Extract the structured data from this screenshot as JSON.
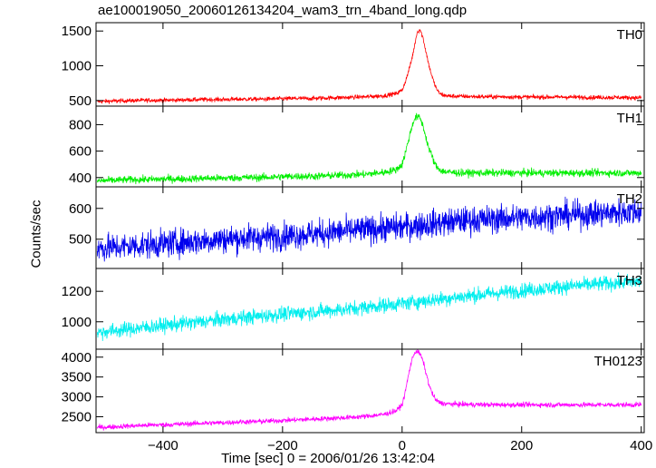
{
  "chart_data": {
    "type": "line",
    "title": "ae100019050_20060126134204_wam3_trn_4band_long.qdp",
    "xlabel": "Time [sec] 0 = 2006/01/26 13:42:04",
    "ylabel": "Counts/sec",
    "xlim": [
      -512,
      405
    ],
    "x_ticks": [
      -400,
      -200,
      0,
      200,
      400
    ],
    "grid": false,
    "panels": [
      {
        "name": "TH0",
        "color": "#ff0000",
        "ylim": [
          420,
          1620
        ],
        "y_ticks": [
          500,
          1000,
          1500
        ],
        "x": [
          -510,
          -480,
          -450,
          -420,
          -390,
          -360,
          -330,
          -300,
          -270,
          -240,
          -210,
          -180,
          -150,
          -120,
          -90,
          -60,
          -30,
          -10,
          0,
          5,
          10,
          15,
          20,
          25,
          30,
          35,
          40,
          45,
          50,
          55,
          60,
          65,
          70,
          80,
          100,
          130,
          160,
          200,
          240,
          280,
          320,
          360,
          400
        ],
        "y": [
          485,
          495,
          500,
          505,
          505,
          510,
          515,
          515,
          520,
          520,
          525,
          530,
          530,
          540,
          545,
          555,
          570,
          600,
          650,
          760,
          900,
          1050,
          1250,
          1480,
          1520,
          1400,
          1200,
          1000,
          850,
          720,
          630,
          590,
          575,
          565,
          560,
          555,
          555,
          550,
          550,
          550,
          545,
          545,
          540
        ],
        "noise": 22
      },
      {
        "name": "TH1",
        "color": "#00ee00",
        "ylim": [
          330,
          940
        ],
        "y_ticks": [
          400,
          600,
          800
        ],
        "x": [
          -510,
          -480,
          -450,
          -420,
          -390,
          -360,
          -330,
          -300,
          -270,
          -240,
          -210,
          -180,
          -150,
          -120,
          -90,
          -60,
          -30,
          -10,
          0,
          5,
          10,
          15,
          20,
          25,
          30,
          35,
          40,
          45,
          50,
          55,
          60,
          65,
          70,
          80,
          100,
          130,
          160,
          200,
          240,
          280,
          320,
          360,
          400
        ],
        "y": [
          375,
          380,
          385,
          385,
          390,
          390,
          395,
          395,
          400,
          400,
          405,
          410,
          410,
          415,
          420,
          425,
          440,
          460,
          500,
          580,
          670,
          760,
          840,
          860,
          850,
          790,
          700,
          620,
          560,
          500,
          470,
          455,
          445,
          440,
          435,
          435,
          435,
          435,
          435,
          435,
          435,
          435,
          435
        ],
        "noise": 20
      },
      {
        "name": "TH2",
        "color": "#0000ee",
        "ylim": [
          405,
          670
        ],
        "y_ticks": [
          500,
          600
        ],
        "x": [
          -510,
          -400,
          -300,
          -200,
          -100,
          0,
          100,
          200,
          300,
          400
        ],
        "y": [
          470,
          485,
          500,
          510,
          525,
          540,
          560,
          570,
          580,
          590
        ],
        "noise": 32
      },
      {
        "name": "TH3",
        "color": "#00eeee",
        "ylim": [
          820,
          1350
        ],
        "y_ticks": [
          1000,
          1200
        ],
        "x": [
          -510,
          -400,
          -300,
          -200,
          -100,
          0,
          100,
          200,
          300,
          400
        ],
        "y": [
          930,
          975,
          1015,
          1050,
          1080,
          1120,
          1165,
          1205,
          1240,
          1265
        ],
        "noise": 35
      },
      {
        "name": "TH0123",
        "color": "#ff00ff",
        "ylim": [
          2100,
          4200
        ],
        "y_ticks": [
          2500,
          3000,
          3500,
          4000
        ],
        "x": [
          -510,
          -480,
          -450,
          -420,
          -390,
          -360,
          -330,
          -300,
          -270,
          -240,
          -210,
          -180,
          -150,
          -120,
          -90,
          -60,
          -30,
          -10,
          0,
          5,
          10,
          15,
          20,
          25,
          30,
          35,
          40,
          45,
          50,
          55,
          60,
          65,
          70,
          80,
          100,
          130,
          160,
          200,
          240,
          280,
          320,
          360,
          400
        ],
        "y": [
          2230,
          2250,
          2270,
          2290,
          2300,
          2320,
          2340,
          2350,
          2370,
          2380,
          2400,
          2420,
          2440,
          2460,
          2480,
          2510,
          2560,
          2650,
          2800,
          3100,
          3500,
          3850,
          4100,
          4150,
          4080,
          3900,
          3600,
          3300,
          3100,
          2950,
          2880,
          2850,
          2830,
          2820,
          2810,
          2805,
          2800,
          2800,
          2800,
          2800,
          2800,
          2800,
          2800
        ],
        "noise": 45
      }
    ]
  }
}
